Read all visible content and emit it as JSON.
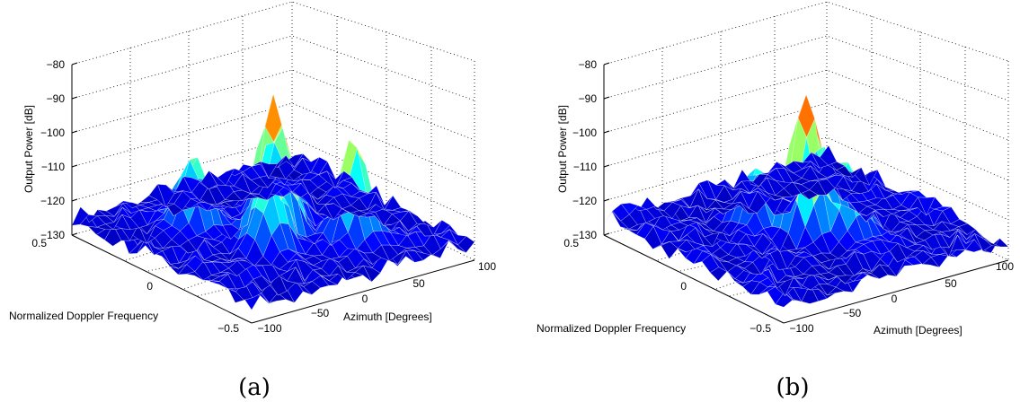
{
  "chart_data": [
    {
      "type": "surface",
      "caption": "(a)",
      "zlabel": "Output Power [dB]",
      "xlabel": "Azimuth [Degrees]",
      "ylabel": "Normalized Doppler Frequency",
      "zlim": [
        -130,
        -80
      ],
      "xlim": [
        -100,
        100
      ],
      "ylim": [
        -0.5,
        0.5
      ],
      "zticks": [
        "−130",
        "−120",
        "−110",
        "−100",
        "−90",
        "−80"
      ],
      "xticks": [
        "−100",
        "−50",
        "0",
        "50",
        "100"
      ],
      "yticks": [
        "−0.5",
        "0",
        "0.5"
      ],
      "grid": true,
      "colormap": "jet",
      "peaks": [
        {
          "azimuth": 0,
          "doppler": 0.0,
          "power": -87
        },
        {
          "azimuth": -20,
          "doppler": 0.1,
          "power": -104
        },
        {
          "azimuth": 20,
          "doppler": -0.1,
          "power": -101
        },
        {
          "azimuth": 40,
          "doppler": 0.2,
          "power": -98
        },
        {
          "azimuth": -40,
          "doppler": -0.2,
          "power": -106
        }
      ],
      "floor_power": -128
    },
    {
      "type": "surface",
      "caption": "(b)",
      "zlabel": "Output Power [dB]",
      "xlabel": "Azimuth [Degrees]",
      "ylabel": "Normalized Doppler Frequency",
      "zlim": [
        -130,
        -80
      ],
      "xlim": [
        -100,
        100
      ],
      "ylim": [
        -0.5,
        0.5
      ],
      "zticks": [
        "−130",
        "−120",
        "−110",
        "−100",
        "−90",
        "−80"
      ],
      "xticks": [
        "−100",
        "−50",
        "0",
        "50",
        "100"
      ],
      "yticks": [
        "−0.5",
        "0",
        "0.5"
      ],
      "grid": true,
      "colormap": "jet",
      "peaks": [
        {
          "azimuth": 0,
          "doppler": 0.0,
          "power": -86
        },
        {
          "azimuth": 20,
          "doppler": 0.1,
          "power": -104
        },
        {
          "azimuth": 30,
          "doppler": -0.1,
          "power": -106
        },
        {
          "azimuth": -20,
          "doppler": -0.15,
          "power": -110
        }
      ],
      "floor_power": -128
    }
  ]
}
